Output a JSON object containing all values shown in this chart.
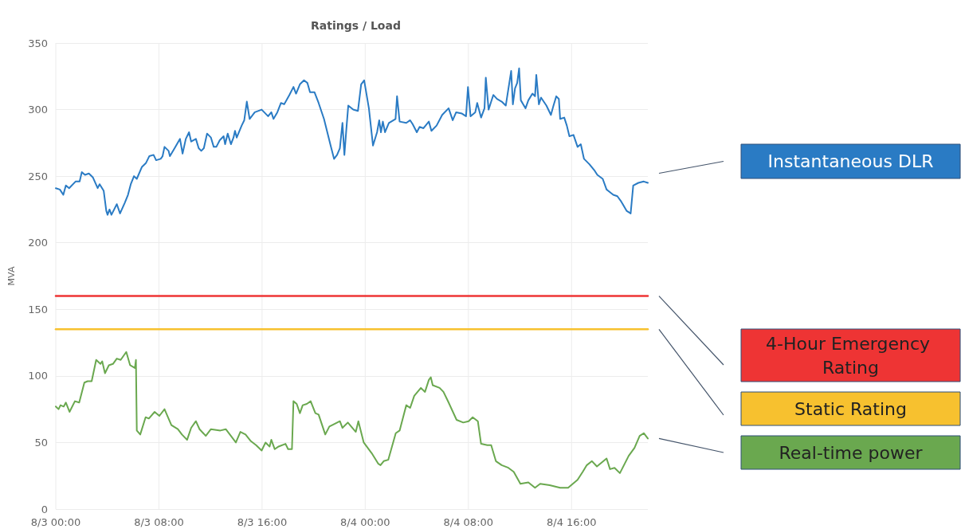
{
  "chart_data": {
    "type": "line",
    "title": "Ratings / Load",
    "ylabel": "MVA",
    "xlim": [
      "--08-03T00:00",
      "--08-04T21:55"
    ],
    "ylim": [
      0,
      350
    ],
    "yticks": [
      0,
      50,
      100,
      150,
      200,
      250,
      300,
      350
    ],
    "xticks": [
      {
        "value": "--08-03T00:00",
        "label": "8/3 00:00"
      },
      {
        "value": "--08-03T08:00",
        "label": "8/3 08:00"
      },
      {
        "value": "--08-03T16:00",
        "label": "8/3 16:00"
      },
      {
        "value": "--08-04T00:00",
        "label": "8/4 00:00"
      },
      {
        "value": "--08-04T08:00",
        "label": "8/4 08:00"
      },
      {
        "value": "--08-04T16:00",
        "label": "8/4 16:00"
      }
    ],
    "grid": true,
    "legend": "right",
    "marker": "none",
    "line_style": "solid",
    "series": [
      {
        "name": "Instantaneous DLR",
        "color": "#2a7bc4",
        "x": [
          "--08-03T00:00",
          "--08-03T00:19",
          "--08-03T00:35",
          "--08-03T00:47",
          "--08-03T01:02",
          "--08-03T01:32",
          "--08-03T01:51",
          "--08-03T02:01",
          "--08-03T02:16",
          "--08-03T02:34",
          "--08-03T02:53",
          "--08-03T03:15",
          "--08-03T03:24",
          "--08-03T03:43",
          "--08-03T03:55",
          "--08-03T04:01",
          "--08-03T04:10",
          "--08-03T04:19",
          "--08-03T04:44",
          "--08-03T04:59",
          "--08-03T05:21",
          "--08-03T05:36",
          "--08-03T05:49",
          "--08-03T06:04",
          "--08-03T06:17",
          "--08-03T06:41",
          "--08-03T07:00",
          "--08-03T07:15",
          "--08-03T07:35",
          "--08-03T07:47",
          "--08-03T08:08",
          "--08-03T08:17",
          "--08-03T08:26",
          "--08-03T08:45",
          "--08-03T08:51",
          "--08-03T09:13",
          "--08-03T09:38",
          "--08-03T09:50",
          "--08-03T10:05",
          "--08-03T10:20",
          "--08-03T10:30",
          "--08-03T10:52",
          "--08-03T11:05",
          "--08-03T11:17",
          "--08-03T11:29",
          "--08-03T11:44",
          "--08-03T12:02",
          "--08-03T12:15",
          "--08-03T12:27",
          "--08-03T12:43",
          "--08-03T13:01",
          "--08-03T13:08",
          "--08-03T13:20",
          "--08-03T13:35",
          "--08-03T13:47",
          "--08-03T13:54",
          "--08-03T14:02",
          "--08-03T14:25",
          "--08-03T14:37",
          "--08-03T14:49",
          "--08-03T15:02",
          "--08-03T15:26",
          "--08-03T15:58",
          "--08-03T16:28",
          "--08-03T16:43",
          "--08-03T16:53",
          "--08-03T17:11",
          "--08-03T17:28",
          "--08-03T17:43",
          "--08-03T18:07",
          "--08-03T18:26",
          "--08-03T18:38",
          "--08-03T18:56",
          "--08-03T19:15",
          "--08-03T19:31",
          "--08-03T19:43",
          "--08-03T20:04",
          "--08-03T20:23",
          "--08-03T20:48",
          "--08-03T21:19",
          "--08-03T21:35",
          "--08-03T21:49",
          "--08-03T22:02",
          "--08-03T22:14",
          "--08-03T22:23",
          "--08-03T22:32",
          "--08-03T22:41",
          "--08-03T23:04",
          "--08-03T23:26",
          "--08-03T23:41",
          "--08-03T23:55",
          "--08-04T00:17",
          "--08-04T00:36",
          "--08-04T00:55",
          "--08-04T01:05",
          "--08-04T01:13",
          "--08-04T01:22",
          "--08-04T01:32",
          "--08-04T01:50",
          "--08-04T02:21",
          "--08-04T02:28",
          "--08-04T02:40",
          "--08-04T03:11",
          "--08-04T03:29",
          "--08-04T03:41",
          "--08-04T04:00",
          "--08-04T04:13",
          "--08-04T04:31",
          "--08-04T04:56",
          "--08-04T05:08",
          "--08-04T05:32",
          "--08-04T05:58",
          "--08-04T06:28",
          "--08-04T06:47",
          "--08-04T07:03",
          "--08-04T07:30",
          "--08-04T07:49",
          "--08-04T07:58",
          "--08-04T08:10",
          "--08-04T08:32",
          "--08-04T08:41",
          "--08-04T08:59",
          "--08-04T09:15",
          "--08-04T09:21",
          "--08-04T09:34",
          "--08-04T09:46",
          "--08-04T09:56",
          "--08-04T10:13",
          "--08-04T10:35",
          "--08-04T10:54",
          "--08-04T11:19",
          "--08-04T11:27",
          "--08-04T11:37",
          "--08-04T11:47",
          "--08-04T11:56",
          "--08-04T12:04",
          "--08-04T12:26",
          "--08-04T12:39",
          "--08-04T12:58",
          "--08-04T13:10",
          "--08-04T13:16",
          "--08-04T13:28",
          "--08-04T13:38",
          "--08-04T14:03",
          "--08-04T14:24",
          "--08-04T14:36",
          "--08-04T14:49",
          "--08-04T15:01",
          "--08-04T15:07",
          "--08-04T15:26",
          "--08-04T15:38",
          "--08-04T15:50",
          "--08-04T16:09",
          "--08-04T16:28",
          "--08-04T16:43",
          "--08-04T16:58",
          "--08-04T17:23",
          "--08-04T17:48",
          "--08-04T18:00",
          "--08-04T18:25",
          "--08-04T18:43",
          "--08-04T19:14",
          "--08-04T19:33",
          "--08-04T19:51",
          "--08-04T20:16",
          "--08-04T20:35",
          "--08-04T20:47",
          "--08-04T21:11",
          "--08-04T21:36",
          "--08-04T21:55"
        ],
        "values": [
          241,
          240,
          236,
          243,
          241,
          246,
          246,
          253,
          251,
          252,
          249,
          241,
          244,
          239,
          224,
          221,
          225,
          221,
          229,
          222,
          230,
          236,
          244,
          250,
          248,
          257,
          260,
          265,
          266,
          262,
          263,
          265,
          272,
          269,
          265,
          271,
          278,
          267,
          278,
          283,
          276,
          278,
          271,
          269,
          271,
          282,
          279,
          272,
          272,
          277,
          280,
          274,
          282,
          274,
          279,
          284,
          279,
          288,
          292,
          306,
          293,
          298,
          300,
          295,
          298,
          293,
          298,
          305,
          304,
          311,
          317,
          312,
          319,
          322,
          320,
          313,
          313,
          305,
          293,
          273,
          263,
          266,
          271,
          290,
          266,
          285,
          303,
          300,
          299,
          319,
          322,
          301,
          273,
          283,
          292,
          283,
          291,
          283,
          290,
          293,
          310,
          291,
          290,
          292,
          289,
          283,
          287,
          286,
          291,
          284,
          288,
          296,
          301,
          292,
          298,
          297,
          295,
          317,
          295,
          298,
          305,
          294,
          301,
          324,
          300,
          306,
          311,
          308,
          306,
          303,
          329,
          304,
          316,
          320,
          331,
          307,
          301,
          307,
          312,
          310,
          326,
          304,
          309,
          303,
          296,
          303,
          310,
          308,
          293,
          294,
          288,
          280,
          281,
          272,
          274,
          263,
          259,
          254,
          251,
          248,
          240,
          236,
          235,
          231,
          224,
          222,
          243,
          245,
          246,
          245
        ]
      },
      {
        "name": "4-Hour Emergency Rating",
        "color": "#ee3434",
        "x": [
          "--08-03T00:00",
          "--08-04T21:55"
        ],
        "values": [
          160,
          160
        ]
      },
      {
        "name": "Static Rating",
        "color": "#f7c12f",
        "x": [
          "--08-03T00:00",
          "--08-04T21:55"
        ],
        "values": [
          135,
          135
        ]
      },
      {
        "name": "Real-time power",
        "color": "#6aa84f",
        "x": [
          "--08-03T00:00",
          "--08-03T00:13",
          "--08-03T00:22",
          "--08-03T00:37",
          "--08-03T00:47",
          "--08-03T01:04",
          "--08-03T01:29",
          "--08-03T01:49",
          "--08-03T02:13",
          "--08-03T02:28",
          "--08-03T02:47",
          "--08-03T03:08",
          "--08-03T03:28",
          "--08-03T03:36",
          "--08-03T03:49",
          "--08-03T04:07",
          "--08-03T04:26",
          "--08-03T04:44",
          "--08-03T05:02",
          "--08-03T05:28",
          "--08-03T05:46",
          "--08-03T06:08",
          "--08-03T06:13",
          "--08-03T06:17",
          "--08-03T06:33",
          "--08-03T06:58",
          "--08-03T07:13",
          "--08-03T07:40",
          "--08-03T08:02",
          "--08-03T08:26",
          "--08-03T08:58",
          "--08-03T09:28",
          "--08-03T09:47",
          "--08-03T10:11",
          "--08-03T10:30",
          "--08-03T10:52",
          "--08-03T11:09",
          "--08-03T11:38",
          "--08-03T12:02",
          "--08-03T12:46",
          "--08-03T13:11",
          "--08-03T13:35",
          "--08-03T13:58",
          "--08-03T14:19",
          "--08-03T14:43",
          "--08-03T15:08",
          "--08-03T15:32",
          "--08-03T15:58",
          "--08-03T16:16",
          "--08-03T16:35",
          "--08-03T16:43",
          "--08-03T16:59",
          "--08-03T17:17",
          "--08-03T17:49",
          "--08-03T18:01",
          "--08-03T18:19",
          "--08-03T18:26",
          "--08-03T18:41",
          "--08-03T18:56",
          "--08-03T19:09",
          "--08-03T19:28",
          "--08-03T19:46",
          "--08-03T20:08",
          "--08-03T20:23",
          "--08-03T20:54",
          "--08-03T21:13",
          "--08-03T21:37",
          "--08-03T22:02",
          "--08-03T22:14",
          "--08-03T22:39",
          "--08-03T23:16",
          "--08-03T23:28",
          "--08-03T23:53",
          "--08-04T00:30",
          "--08-04T01:01",
          "--08-04T01:11",
          "--08-04T01:26",
          "--08-04T01:47",
          "--08-04T02:22",
          "--08-04T02:40",
          "--08-04T03:11",
          "--08-04T03:29",
          "--08-04T03:48",
          "--08-04T04:19",
          "--08-04T04:38",
          "--08-04T04:56",
          "--08-04T05:05",
          "--08-04T05:14",
          "--08-04T05:46",
          "--08-04T06:04",
          "--08-04T06:28",
          "--08-04T07:05",
          "--08-04T07:36",
          "--08-04T08:01",
          "--08-04T08:20",
          "--08-04T08:44",
          "--08-04T08:59",
          "--08-04T09:28",
          "--08-04T09:46",
          "--08-04T10:08",
          "--08-04T10:35",
          "--08-04T11:06",
          "--08-04T11:31",
          "--08-04T12:02",
          "--08-04T12:39",
          "--08-04T13:10",
          "--08-04T13:34",
          "--08-04T14:18",
          "--08-04T15:07",
          "--08-04T15:44",
          "--08-04T16:28",
          "--08-04T16:52",
          "--08-04T17:11",
          "--08-04T17:35",
          "--08-04T17:58",
          "--08-04T18:43",
          "--08-04T18:59",
          "--08-04T19:20",
          "--08-04T19:45",
          "--08-04T20:26",
          "--08-04T20:53",
          "--08-04T21:17",
          "--08-04T21:36",
          "--08-04T21:55"
        ],
        "values": [
          77,
          75,
          78,
          77,
          80,
          73,
          81,
          80,
          95,
          96,
          96,
          112,
          109,
          111,
          102,
          108,
          109,
          113,
          112,
          118,
          108,
          106,
          112,
          59,
          56,
          69,
          68,
          73,
          70,
          75,
          63,
          60,
          56,
          52,
          61,
          66,
          60,
          55,
          60,
          59,
          60,
          55,
          50,
          58,
          56,
          51,
          48,
          44,
          50,
          47,
          52,
          45,
          47,
          49,
          45,
          45,
          81,
          79,
          72,
          78,
          79,
          81,
          72,
          71,
          56,
          62,
          64,
          66,
          61,
          65,
          58,
          66,
          50,
          42,
          34,
          33,
          36,
          37,
          57,
          59,
          78,
          76,
          85,
          91,
          88,
          97,
          99,
          93,
          91,
          88,
          80,
          67,
          65,
          66,
          69,
          66,
          49,
          48,
          48,
          36,
          33,
          31,
          28,
          19,
          20,
          16,
          19,
          18,
          16,
          16,
          22,
          28,
          33,
          36,
          32,
          38,
          30,
          31,
          27,
          40,
          46,
          55,
          57,
          53
        ]
      }
    ]
  }
}
